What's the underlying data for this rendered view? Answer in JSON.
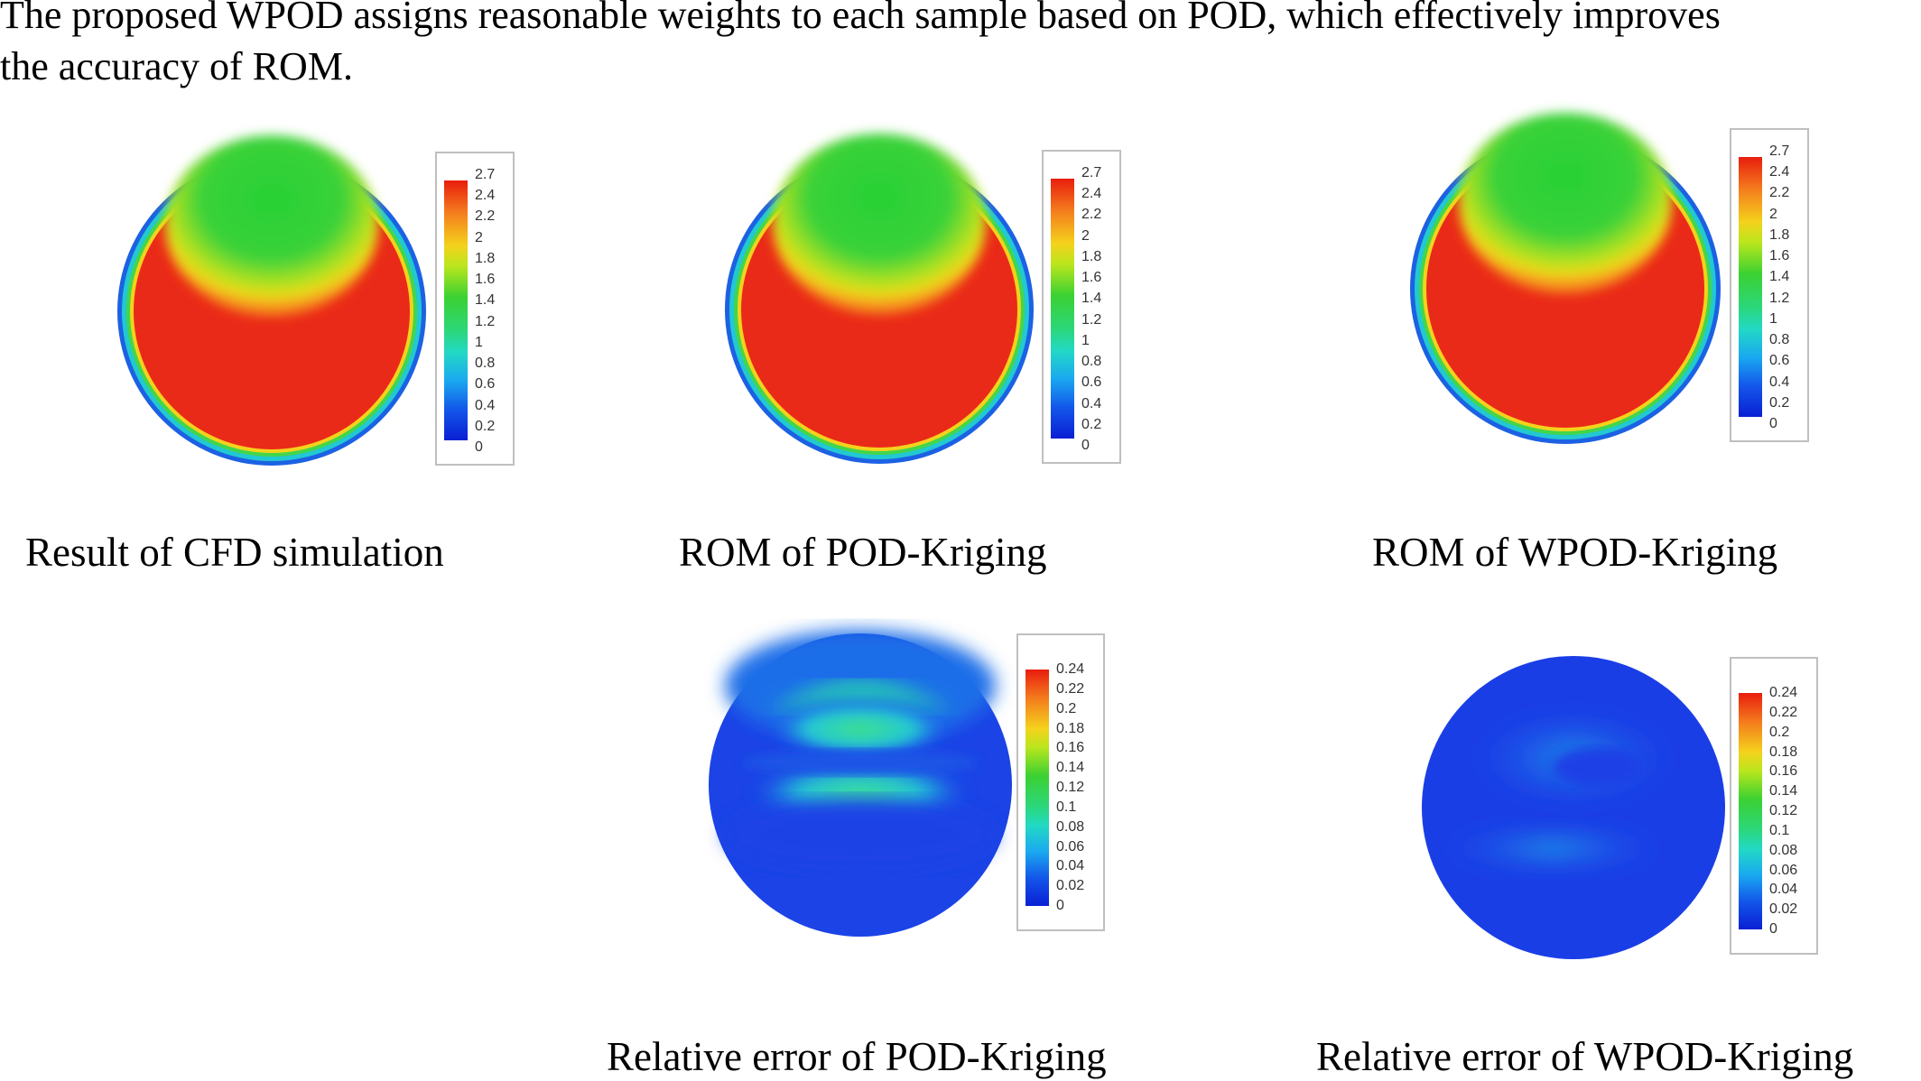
{
  "intro": {
    "line1": "The proposed WPOD assigns reasonable weights to each sample based on POD, which effectively improves",
    "line2": "the accuracy of ROM."
  },
  "panels": {
    "cfd": {
      "caption": "Result of CFD simulation",
      "legend": [
        "2.7",
        "2.4",
        "2.2",
        "2",
        "1.8",
        "1.6",
        "1.4",
        "1.2",
        "1",
        "0.8",
        "0.6",
        "0.4",
        "0.2",
        "0"
      ]
    },
    "pod": {
      "caption": "ROM of POD-Kriging",
      "legend": [
        "2.7",
        "2.4",
        "2.2",
        "2",
        "1.8",
        "1.6",
        "1.4",
        "1.2",
        "1",
        "0.8",
        "0.6",
        "0.4",
        "0.2",
        "0"
      ]
    },
    "wpod": {
      "caption": "ROM of WPOD-Kriging",
      "legend": [
        "2.7",
        "2.4",
        "2.2",
        "2",
        "1.8",
        "1.6",
        "1.4",
        "1.2",
        "1",
        "0.8",
        "0.6",
        "0.4",
        "0.2",
        "0"
      ]
    },
    "pod_err": {
      "caption": "Relative error of POD-Kriging",
      "legend": [
        "0.24",
        "0.22",
        "0.2",
        "0.18",
        "0.16",
        "0.14",
        "0.12",
        "0.1",
        "0.08",
        "0.06",
        "0.04",
        "0.02",
        "0"
      ]
    },
    "wpod_err": {
      "caption": "Relative error of WPOD-Kriging",
      "legend": [
        "0.24",
        "0.22",
        "0.2",
        "0.18",
        "0.16",
        "0.14",
        "0.12",
        "0.1",
        "0.08",
        "0.06",
        "0.04",
        "0.02",
        "0"
      ]
    }
  },
  "colors": {
    "high": "#e9271a",
    "mid": "#32d23a",
    "low": "#1e3fe6",
    "ring": "#2a6fe0"
  }
}
